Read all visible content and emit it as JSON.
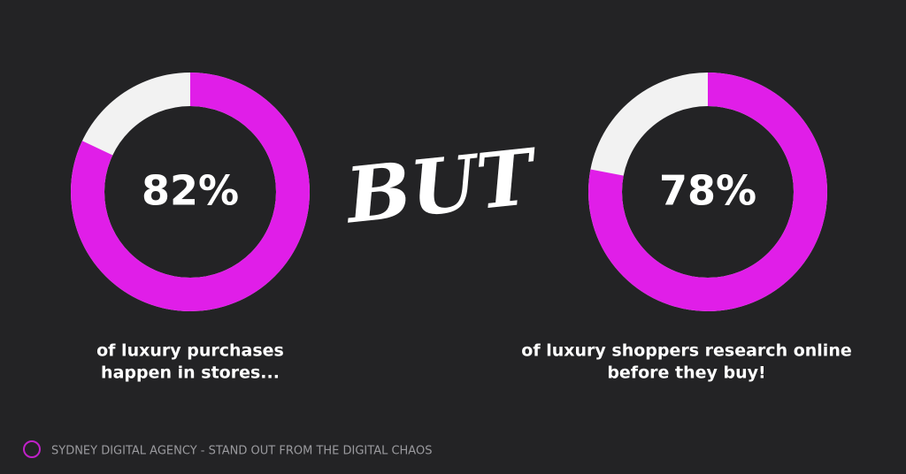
{
  "chart_data": [
    {
      "type": "donut",
      "values": [
        82
      ],
      "value_labels": [
        "82%"
      ],
      "caption_lines": [
        "of luxury purchases",
        "happen in stores..."
      ],
      "color": "#e01ee8",
      "track_color": "#f2f2f2"
    },
    {
      "type": "donut",
      "values": [
        78
      ],
      "value_labels": [
        "78%"
      ],
      "caption_lines": [
        "of luxury shoppers research online",
        "before they buy!"
      ],
      "color": "#e01ee8",
      "track_color": "#f2f2f2"
    }
  ],
  "connector": "BUT",
  "footer": "SYDNEY DIGITAL AGENCY - STAND OUT FROM THE DIGITAL CHAOS"
}
